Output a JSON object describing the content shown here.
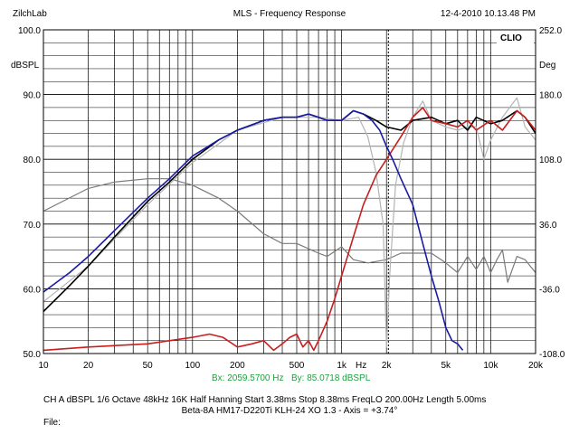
{
  "header": {
    "left": "ZilchLab",
    "center": "MLS - Frequency Response",
    "right": "12-4-2010 10.13.48 PM"
  },
  "logo": "CLIO",
  "footer": {
    "params": "CH A   dBSPL   1/6 Octave   48kHz   16K   Half Hanning   Start 3.38ms    Stop 8.38ms    FreqLO 200.00Hz   Length 5.00ms",
    "title": "Beta-8A HM17-D220Ti KLH-24 XO 1.3 - Axis = +3.74°",
    "file": "File:"
  },
  "colors": {
    "background": "#ffffff",
    "grid": "#000000",
    "system_response": "#000000",
    "woofer": "#1a1aa8",
    "tweeter": "#c81e1e",
    "light_gray": "#b4b4b4",
    "phase_gray": "#7a7a7a",
    "cursor_text": "#19a33a"
  },
  "chart_data": {
    "type": "line",
    "title": "MLS - Frequency Response",
    "x_scale": "log",
    "xlim": [
      10,
      20000
    ],
    "ylim": [
      50,
      100
    ],
    "ylim_right": [
      -108,
      252
    ],
    "ylabel": "dBSPL",
    "ylabel_right": "Deg",
    "xlabel_unit": "Hz",
    "grid": true,
    "x_ticks": [
      10,
      20,
      50,
      100,
      200,
      500,
      1000,
      2000,
      5000,
      10000,
      20000
    ],
    "x_tick_labels": [
      "10",
      "20",
      "50",
      "100",
      "200",
      "500",
      "1k",
      "2k",
      "5k",
      "10k",
      "20k"
    ],
    "y_tick_labels": [
      "100.0",
      "90.0",
      "80.0",
      "70.0",
      "60.0",
      "50.0"
    ],
    "y_right_tick_labels": [
      "252.0",
      "180.0",
      "108.0",
      "36.0",
      "-36.0",
      "-108.0"
    ],
    "cursor": {
      "x": 2059.57,
      "bx_label": "Bx: 2059.5700 Hz",
      "by_label": "By: 85.0718 dBSPL"
    },
    "series": [
      {
        "color": "black",
        "x": [
          10,
          15,
          20,
          30,
          50,
          70,
          100,
          150,
          200,
          300,
          400,
          500,
          600,
          700,
          800,
          1000,
          1200,
          1400,
          1700,
          2000,
          2500,
          3000,
          4000,
          5000,
          6000,
          7000,
          8000,
          10000,
          12000,
          15000,
          17000,
          20000
        ],
        "y": [
          56.5,
          60.5,
          63.5,
          68.0,
          73.5,
          76.5,
          80.0,
          83.0,
          84.5,
          86.0,
          86.5,
          86.5,
          87.0,
          86.5,
          86.0,
          86.0,
          87.5,
          87.0,
          86.0,
          85.0,
          84.5,
          86.0,
          86.5,
          85.5,
          86.0,
          84.5,
          86.5,
          85.5,
          86.0,
          87.5,
          86.5,
          84.0
        ]
      },
      {
        "color": "blue",
        "x": [
          10,
          15,
          20,
          30,
          50,
          70,
          100,
          150,
          200,
          300,
          400,
          500,
          600,
          700,
          800,
          1000,
          1200,
          1400,
          1600,
          1800,
          2000,
          2200,
          2500,
          3000,
          3500,
          4000,
          4500,
          5000,
          5500,
          6000,
          6500
        ],
        "y": [
          59.5,
          62.5,
          65.0,
          69.0,
          74.0,
          77.0,
          80.5,
          83.0,
          84.5,
          86.0,
          86.5,
          86.5,
          87.0,
          86.5,
          86.0,
          86.0,
          87.5,
          87.0,
          86.0,
          84.5,
          82.0,
          80.0,
          77.0,
          73.0,
          67.0,
          62.0,
          58.0,
          54.0,
          52.0,
          51.5,
          50.5
        ]
      },
      {
        "color": "red",
        "x": [
          10,
          20,
          50,
          100,
          130,
          160,
          200,
          250,
          300,
          350,
          400,
          450,
          500,
          550,
          600,
          650,
          700,
          800,
          900,
          1000,
          1200,
          1400,
          1700,
          2000,
          2500,
          3000,
          3500,
          4000,
          5000,
          6000,
          7000,
          8000,
          10000,
          12000,
          15000,
          17000,
          20000
        ],
        "y": [
          50.5,
          51.0,
          51.5,
          52.5,
          53.0,
          52.5,
          51.0,
          51.5,
          52.0,
          50.5,
          51.5,
          52.5,
          53.0,
          51.0,
          52.0,
          50.5,
          52.0,
          55.0,
          58.5,
          62.0,
          68.0,
          73.0,
          77.5,
          80.0,
          83.5,
          86.5,
          88.0,
          86.0,
          85.5,
          85.0,
          86.0,
          84.5,
          86.0,
          84.5,
          87.5,
          86.5,
          84.5
        ]
      },
      {
        "color": "light gray",
        "x": [
          10,
          20,
          50,
          100,
          200,
          400,
          700,
          1000,
          1300,
          1500,
          1700,
          1900,
          2000,
          2100,
          2300,
          2600,
          3000,
          3500,
          4000,
          5000,
          6000,
          7000,
          8000,
          9000,
          10000,
          12000,
          15000,
          17000,
          20000
        ],
        "y": [
          58.0,
          63.5,
          73.0,
          79.5,
          84.5,
          86.5,
          86.5,
          86.0,
          86.5,
          83.5,
          78.0,
          70.0,
          51.0,
          62.0,
          76.0,
          82.5,
          86.5,
          89.0,
          86.0,
          85.0,
          84.5,
          85.0,
          85.0,
          80.0,
          83.0,
          86.5,
          89.5,
          85.0,
          83.0
        ]
      },
      {
        "color": "phase gray",
        "x": [
          10,
          20,
          30,
          50,
          70,
          100,
          150,
          200,
          300,
          400,
          500,
          700,
          800,
          1000,
          1200,
          1500,
          2000,
          2500,
          3000,
          4000,
          5000,
          6000,
          7000,
          8000,
          9000,
          10000,
          11000,
          12000,
          13000,
          15000,
          17000,
          20000
        ],
        "y": [
          72.0,
          75.5,
          76.5,
          77.0,
          77.0,
          76.0,
          74.0,
          72.0,
          68.5,
          67.0,
          67.0,
          65.5,
          65.0,
          66.5,
          64.5,
          64.0,
          64.5,
          65.5,
          65.5,
          65.5,
          64.0,
          62.5,
          65.0,
          63.0,
          65.0,
          62.5,
          64.5,
          66.0,
          61.0,
          65.0,
          64.5,
          62.5
        ]
      }
    ]
  }
}
